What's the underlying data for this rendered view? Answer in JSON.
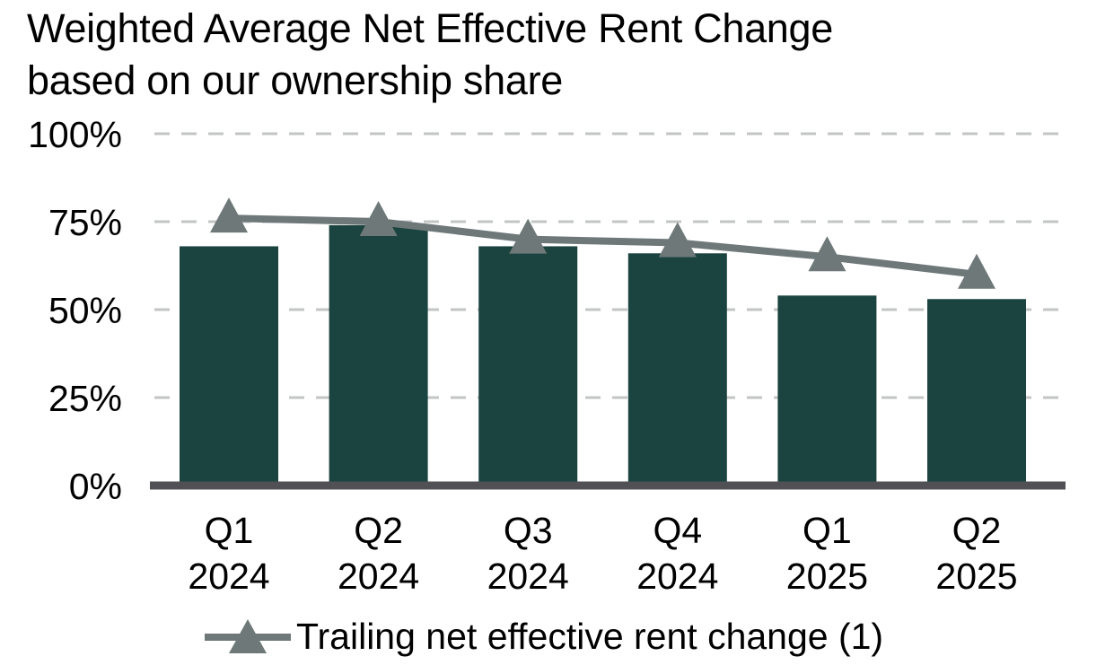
{
  "title": {
    "line1": "Weighted Average Net Effective Rent Change",
    "line2": "based on our ownership share"
  },
  "chart_data": {
    "type": "bar",
    "title": "Weighted Average Net Effective Rent Change based on our ownership share",
    "categories": [
      "Q1 2024",
      "Q2 2024",
      "Q3 2024",
      "Q4 2024",
      "Q1 2025",
      "Q2 2025"
    ],
    "category_labels": [
      [
        "Q1",
        "2024"
      ],
      [
        "Q2",
        "2024"
      ],
      [
        "Q3",
        "2024"
      ],
      [
        "Q4",
        "2024"
      ],
      [
        "Q1",
        "2025"
      ],
      [
        "Q2",
        "2025"
      ]
    ],
    "series": [
      {
        "name": "Weighted average net effective rent change",
        "type": "bar",
        "values": [
          68,
          74,
          68,
          66,
          54,
          53
        ],
        "color": "#1B4440"
      },
      {
        "name": "Trailing net effective rent change (1)",
        "type": "line",
        "marker": "triangle",
        "values": [
          76,
          75,
          70,
          69,
          65,
          60
        ],
        "color": "#6E7879"
      }
    ],
    "ylim": [
      0,
      100
    ],
    "yticks": [
      {
        "value": 100,
        "label": "100%"
      },
      {
        "value": 75,
        "label": "75%"
      },
      {
        "value": 50,
        "label": "50%"
      },
      {
        "value": 25,
        "label": "25%"
      },
      {
        "value": 0,
        "label": "0%"
      }
    ],
    "grid": {
      "style": "dashed",
      "color": "#C3C5C5",
      "axis_color": "#515155"
    },
    "legend_position": "bottom"
  },
  "legend": {
    "label": "Trailing net effective rent change (1)",
    "marker_color": "#6E7879"
  },
  "colors": {
    "background": "#FFFFFF",
    "text": "#000000",
    "bar": "#1B4440",
    "trend_line": "#6E7879",
    "gridline": "#C3C5C5",
    "axis": "#515155"
  }
}
